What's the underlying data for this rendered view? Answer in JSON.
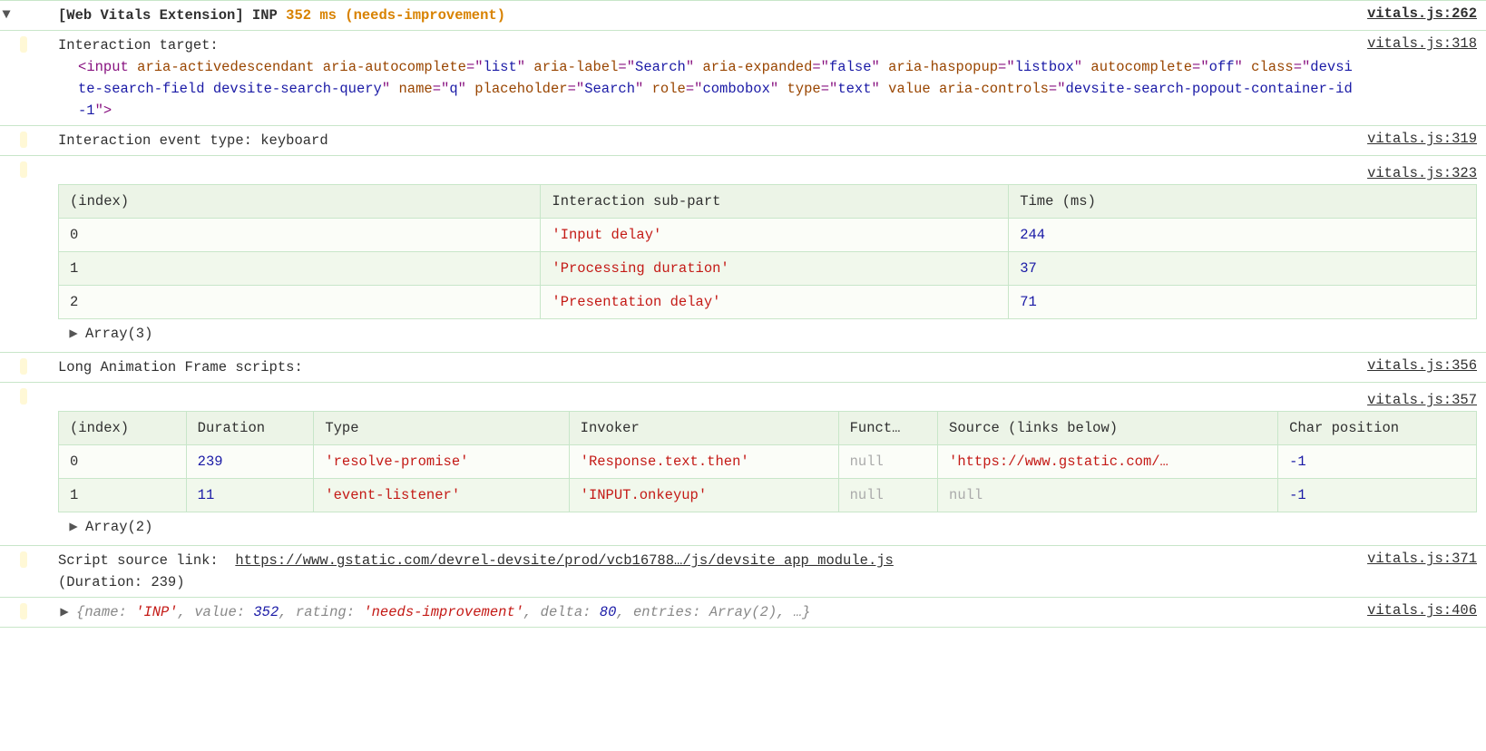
{
  "colors": {
    "border": "#c8e6c9",
    "header_bg": "#ecf4e7",
    "row_even": "#fbfdf8",
    "row_odd": "#f1f8ec",
    "orange": "#d88200",
    "tag_purple": "#881280",
    "attr_name": "#994500",
    "attr_val": "#1a1aa6",
    "num_blue": "#1a1aa6",
    "str_red": "#c41a16",
    "null_grey": "#aaaaaa",
    "text": "#303030",
    "gutter_bar": "#fff8d6"
  },
  "header": {
    "prefix": "[Web Vitals Extension] INP",
    "value": "352 ms",
    "qualifier": "(needs-improvement)",
    "source": "vitals.js:262"
  },
  "interaction_target": {
    "label": "Interaction target:",
    "source": "vitals.js:318",
    "element": {
      "tag": "input",
      "attrs": [
        {
          "name": "aria-activedescendant",
          "value": null
        },
        {
          "name": "aria-autocomplete",
          "value": "list"
        },
        {
          "name": "aria-label",
          "value": "Search"
        },
        {
          "name": "aria-expanded",
          "value": "false"
        },
        {
          "name": "aria-haspopup",
          "value": "listbox"
        },
        {
          "name": "autocomplete",
          "value": "off"
        },
        {
          "name": "class",
          "value": "devsite-search-field devsite-search-query"
        },
        {
          "name": "name",
          "value": "q"
        },
        {
          "name": "placeholder",
          "value": "Search"
        },
        {
          "name": "role",
          "value": "combobox"
        },
        {
          "name": "type",
          "value": "text"
        },
        {
          "name": "value",
          "value": null
        },
        {
          "name": "aria-controls",
          "value": "devsite-search-popout-container-id-1"
        }
      ]
    }
  },
  "event_type": {
    "text": "Interaction event type: keyboard",
    "source": "vitals.js:319"
  },
  "table1": {
    "source": "vitals.js:323",
    "columns": [
      "(index)",
      "Interaction sub-part",
      "Time (ms)"
    ],
    "rows": [
      [
        "0",
        "'Input delay'",
        "244"
      ],
      [
        "1",
        "'Processing duration'",
        "37"
      ],
      [
        "2",
        "'Presentation delay'",
        "71"
      ]
    ],
    "array_label": "Array(3)"
  },
  "laf_label": {
    "text": "Long Animation Frame scripts:",
    "source": "vitals.js:356"
  },
  "table2": {
    "source": "vitals.js:357",
    "columns": [
      "(index)",
      "Duration",
      "Type",
      "Invoker",
      "Funct…",
      "Source (links below)",
      "Char position"
    ],
    "col_widths_pct": [
      9,
      9,
      18,
      19,
      7,
      24,
      14
    ],
    "rows": [
      {
        "index": "0",
        "duration": "239",
        "type": "'resolve-promise'",
        "invoker": "'Response.text.then'",
        "func": "null",
        "source": "'https://www.gstatic.com/…",
        "char": "-1"
      },
      {
        "index": "1",
        "duration": "11",
        "type": "'event-listener'",
        "invoker": "'INPUT.onkeyup'",
        "func": "null",
        "source": "null",
        "char": "-1"
      }
    ],
    "array_label": "Array(2)"
  },
  "script_source": {
    "label": "Script source link:",
    "url": "https://www.gstatic.com/devrel-devsite/prod/vcb16788…/js/devsite_app_module.js",
    "duration_text": "(Duration: 239)",
    "source": "vitals.js:371"
  },
  "final_obj": {
    "text_open": "{",
    "pairs": [
      {
        "key": "name",
        "val": "'INP'",
        "type": "str"
      },
      {
        "key": "value",
        "val": "352",
        "type": "num"
      },
      {
        "key": "rating",
        "val": "'needs-improvement'",
        "type": "str"
      },
      {
        "key": "delta",
        "val": "80",
        "type": "num"
      },
      {
        "key": "entries",
        "val": "Array(2)",
        "type": "plain"
      }
    ],
    "trailing": ", …}",
    "source": "vitals.js:406"
  }
}
